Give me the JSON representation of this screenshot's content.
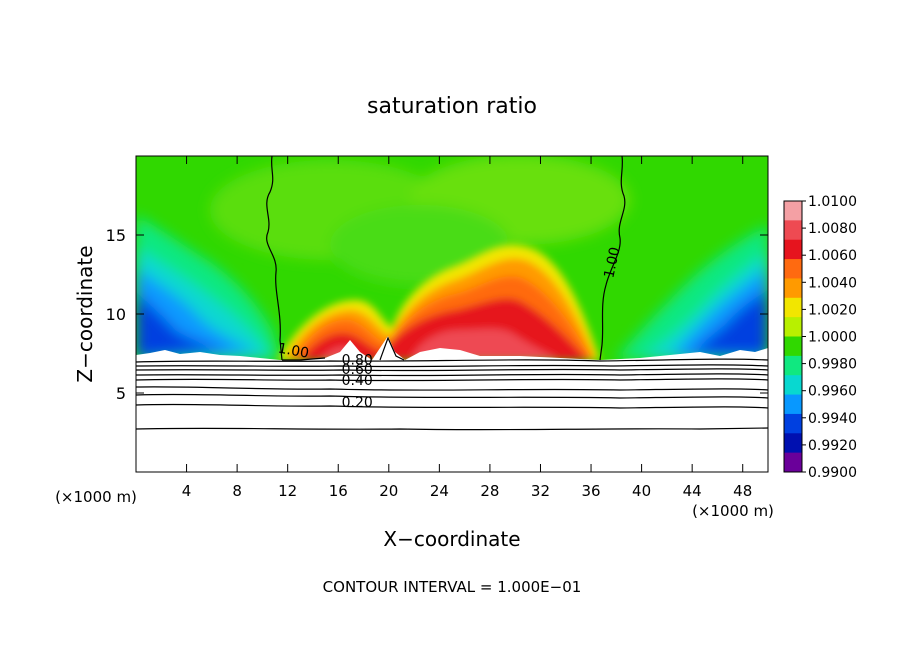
{
  "chart_data": {
    "type": "heatmap",
    "title": "saturation ratio",
    "xlabel": "X−coordinate",
    "ylabel": "Z−coordinate",
    "x_unit_left": "(×1000 m)",
    "x_unit_right": "(×1000 m)",
    "footer": "CONTOUR INTERVAL = 1.000E−01",
    "xlim": [
      0,
      50
    ],
    "ylim": [
      0,
      20
    ],
    "xticks": [
      4,
      8,
      12,
      16,
      20,
      24,
      28,
      32,
      36,
      40,
      44,
      48
    ],
    "yticks": [
      5,
      10,
      15
    ],
    "colorbar": {
      "labels": [
        "1.0100",
        "1.0080",
        "1.0060",
        "1.0040",
        "1.0020",
        "1.0000",
        "0.9980",
        "0.9960",
        "0.9940",
        "0.9920",
        "0.9900"
      ],
      "range": [
        0.99,
        1.01
      ],
      "colors": [
        "#f4a0a4",
        "#ee4a52",
        "#e6141e",
        "#ff6a10",
        "#ff9a00",
        "#f2e600",
        "#b8f000",
        "#30d800",
        "#10e880",
        "#08d8d0",
        "#0898ff",
        "#0040e0",
        "#0010b0",
        "#6a009a"
      ]
    },
    "contour_labels": [
      {
        "text": "1.00",
        "x": 38,
        "z": 13.2,
        "rotate": -78
      },
      {
        "text": "1.00",
        "x": 12.4,
        "z": 7.4,
        "rotate": 10
      },
      {
        "text": "0.80",
        "x": 17.5,
        "z": 6.8,
        "rotate": 0
      },
      {
        "text": "0.60",
        "x": 17.5,
        "z": 6.2,
        "rotate": 0
      },
      {
        "text": "0.40",
        "x": 17.5,
        "z": 5.5,
        "rotate": 0
      },
      {
        "text": "0.20",
        "x": 17.5,
        "z": 4.1,
        "rotate": 0
      }
    ],
    "contour_levels_below": [
      0.9,
      0.8,
      0.7,
      0.6,
      0.5,
      0.4,
      0.3,
      0.2,
      0.1
    ],
    "grid": false
  }
}
